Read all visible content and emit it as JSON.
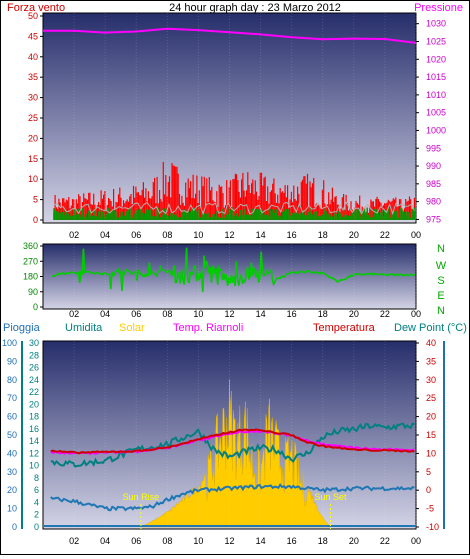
{
  "header": {
    "title": "24 hour graph day : 23 Marzo 2012",
    "left_label": "Forza vento",
    "right_label": "Pressione"
  },
  "colors": {
    "wind": "#ff0000",
    "wind_gust": "#ff0000",
    "wind_avg": "#b0b0b0",
    "wind_low": "#009900",
    "pressure": "#ff00ff",
    "direction": "#00cc00",
    "humidity": "#008080",
    "solar": "#ffcc00",
    "temp_riarnoli": "#ff00ff",
    "temperature": "#cc0000",
    "dew_point": "#1f77b4",
    "rain": "#1f77b4",
    "sun_marker": "#ffff00"
  },
  "middle": {
    "compass_labels": [
      "N",
      "W",
      "S",
      "E",
      "N"
    ]
  },
  "bottom_legend": {
    "rain": "Pioggia",
    "humidity": "Umidita",
    "solar": "Solar",
    "temp_riarnoli": "Temp. Riarnoli",
    "temperature": "Temperatura",
    "dew_point": "Dew Point (°C)"
  },
  "annotations": {
    "sun_rise": "Sun Rise",
    "sun_set": "Sun Set"
  },
  "chart_data": [
    {
      "type": "line",
      "x_ticks": [
        "02",
        "04",
        "06",
        "08",
        "10",
        "12",
        "14",
        "16",
        "18",
        "20",
        "22",
        "00"
      ],
      "y_left_ticks": [
        0,
        5,
        10,
        15,
        20,
        25,
        30,
        35,
        40,
        45,
        50
      ],
      "y_right_ticks": [
        975,
        980,
        985,
        990,
        995,
        1000,
        1005,
        1010,
        1015,
        1020,
        1025,
        1030
      ],
      "ylim_left": [
        0,
        50
      ],
      "ylim_right": [
        974,
        1033
      ],
      "series": [
        {
          "name": "Forza vento",
          "axis": "left",
          "hours": [
            0,
            2,
            4,
            6,
            7,
            8,
            9,
            10,
            11,
            12,
            13,
            14,
            15,
            16,
            17,
            18,
            19,
            20,
            21,
            22,
            23,
            24
          ],
          "values": [
            5,
            5,
            6,
            7,
            8,
            12,
            10,
            9,
            8,
            8,
            10,
            9,
            8,
            8,
            9,
            8,
            5,
            5,
            4,
            5,
            4,
            5
          ]
        },
        {
          "name": "Pressione",
          "axis": "right",
          "hours": [
            0,
            2,
            4,
            6,
            8,
            10,
            12,
            14,
            16,
            18,
            20,
            22,
            24
          ],
          "values": [
            1028,
            1028,
            1027.5,
            1027.8,
            1028.6,
            1028.2,
            1027.6,
            1027.0,
            1026.2,
            1025.6,
            1025.8,
            1025.7,
            1024.6
          ]
        }
      ]
    },
    {
      "type": "line",
      "x_ticks": [
        "02",
        "04",
        "06",
        "08",
        "10",
        "12",
        "14",
        "16",
        "18",
        "20",
        "22",
        "00"
      ],
      "y_ticks": [
        0,
        90,
        180,
        270,
        360
      ],
      "ylim": [
        0,
        360
      ],
      "series": [
        {
          "hours": [
            0,
            1,
            2,
            3,
            4,
            5,
            6,
            7,
            8,
            9,
            10,
            11,
            12,
            13,
            14,
            15,
            16,
            17,
            18,
            19,
            20,
            21,
            22,
            23,
            24
          ],
          "values": [
            165,
            195,
            200,
            205,
            195,
            210,
            200,
            195,
            210,
            180,
            200,
            210,
            150,
            190,
            190,
            165,
            200,
            210,
            200,
            150,
            190,
            195,
            190,
            190,
            190
          ]
        }
      ]
    },
    {
      "type": "line",
      "x_ticks": [
        "02",
        "04",
        "06",
        "08",
        "10",
        "12",
        "14",
        "16",
        "18",
        "20",
        "22",
        "00"
      ],
      "y_pct_ticks": [
        0,
        10,
        20,
        30,
        40,
        50,
        60,
        70,
        80,
        90,
        100
      ],
      "y_rain_ticks": [
        0,
        2,
        4,
        6,
        8,
        10,
        12,
        14,
        16,
        18,
        20,
        22,
        24,
        26,
        28,
        30
      ],
      "y_temp_ticks": [
        -10,
        -5,
        0,
        5,
        10,
        15,
        20,
        25,
        30,
        35,
        40
      ],
      "ylim_pct": [
        0,
        100
      ],
      "ylim_rain": [
        0,
        30
      ],
      "ylim_temp": [
        -10,
        40
      ],
      "sun_rise_hour": 6.3,
      "sun_set_hour": 18.5,
      "series": [
        {
          "name": "Umidita",
          "axis": "pct",
          "hours": [
            0,
            2,
            4,
            6,
            8,
            10,
            11,
            12,
            13,
            14,
            15,
            16,
            17,
            18,
            19,
            20,
            21,
            22,
            23,
            24
          ],
          "values": [
            36,
            34,
            36,
            42,
            45,
            52,
            42,
            38,
            41,
            43,
            42,
            37,
            40,
            49,
            52,
            53,
            55,
            54,
            55,
            55
          ]
        },
        {
          "name": "Solar",
          "axis": "pct",
          "hours": [
            6.3,
            7,
            8,
            9,
            10,
            10.5,
            11,
            11.5,
            12,
            12.5,
            13,
            13.5,
            14,
            14.5,
            15,
            15.5,
            16,
            16.5,
            17,
            18,
            18.5
          ],
          "values": [
            0,
            3,
            8,
            15,
            22,
            30,
            45,
            60,
            70,
            55,
            65,
            40,
            35,
            62,
            50,
            40,
            45,
            30,
            22,
            5,
            0
          ]
        },
        {
          "name": "Temp. Riarnoli",
          "axis": "temp",
          "hours": [
            0,
            2,
            4,
            6,
            8,
            10,
            12,
            13,
            14,
            15,
            16,
            17,
            18,
            20,
            22,
            24
          ],
          "values": [
            10.5,
            10.0,
            10.2,
            10.5,
            11.5,
            13.5,
            15.5,
            16.0,
            16.0,
            15.5,
            15.0,
            13.5,
            12.5,
            11.5,
            11.0,
            11.0
          ]
        },
        {
          "name": "Temperatura",
          "axis": "temp",
          "hours": [
            0,
            2,
            4,
            6,
            8,
            10,
            12,
            13,
            14,
            15,
            16,
            17,
            18,
            20,
            22,
            24
          ],
          "values": [
            10.8,
            10.2,
            10.4,
            10.6,
            11.6,
            13.8,
            15.8,
            16.5,
            16.3,
            15.6,
            15.0,
            13.0,
            12.0,
            11.0,
            10.8,
            10.6
          ]
        },
        {
          "name": "Dew Point (°C)",
          "axis": "temp",
          "hours": [
            0,
            2,
            4,
            6,
            7,
            8,
            9,
            10,
            12,
            14,
            16,
            17,
            18,
            20,
            22,
            24
          ],
          "values": [
            -2,
            -3,
            -5,
            -5,
            -4.5,
            -2.5,
            -1,
            0,
            0.5,
            1,
            1,
            0.5,
            0,
            0.5,
            0.5,
            0.5
          ]
        },
        {
          "name": "Pioggia",
          "axis": "rain",
          "hours": [
            0,
            24
          ],
          "values": [
            0,
            0
          ]
        }
      ]
    }
  ]
}
